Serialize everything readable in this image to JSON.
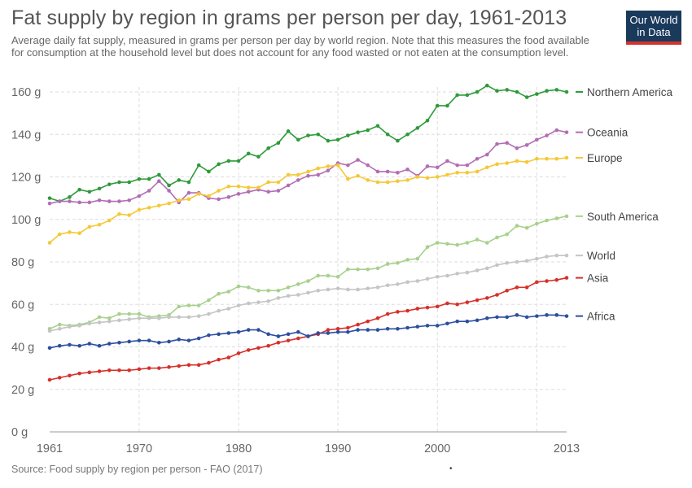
{
  "title": "Fat supply by region in grams per person per day, 1961-2013",
  "subtitle": "Average daily fat supply, measured in grams per person per day by world region. Note that this measures the food available for consumption at the household level but does not account for any food wasted or not eaten at the consumption level.",
  "logo": {
    "line1": "Our World",
    "line2": "in Data",
    "colors": {
      "background": "#1a3a5c",
      "underline": "#d0342c"
    }
  },
  "source": "Source: Food supply by region per person - FAO (2017)",
  "footer_mark": "•",
  "chart_data": {
    "type": "line",
    "title": "Fat supply by region in grams per person per day, 1961-2013",
    "xlim": [
      1961,
      2013
    ],
    "ylim": [
      0,
      160
    ],
    "x_ticks": [
      1961,
      1970,
      1980,
      1990,
      2000,
      2013
    ],
    "y_ticks": [
      0,
      20,
      40,
      60,
      80,
      100,
      120,
      140,
      160
    ],
    "y_tick_labels": [
      "0 g",
      "20 g",
      "40 g",
      "60 g",
      "80 g",
      "100 g",
      "120 g",
      "140 g",
      "160 g"
    ],
    "vertical_grid_years": [
      1970,
      1980,
      1990,
      2000,
      2010
    ],
    "grid": true,
    "legend": "right-end labels",
    "x": [
      1961,
      1962,
      1963,
      1964,
      1965,
      1966,
      1967,
      1968,
      1969,
      1970,
      1971,
      1972,
      1973,
      1974,
      1975,
      1976,
      1977,
      1978,
      1979,
      1980,
      1981,
      1982,
      1983,
      1984,
      1985,
      1986,
      1987,
      1988,
      1989,
      1990,
      1991,
      1992,
      1993,
      1994,
      1995,
      1996,
      1997,
      1998,
      1999,
      2000,
      2001,
      2002,
      2003,
      2004,
      2005,
      2006,
      2007,
      2008,
      2009,
      2010,
      2011,
      2012,
      2013
    ],
    "series": [
      {
        "name": "Northern America",
        "color": "#2e9a3a",
        "values": [
          110,
          108.5,
          110.5,
          114,
          113,
          114.5,
          116.5,
          117.5,
          117.5,
          119,
          119,
          121,
          116,
          118.5,
          117.5,
          125.5,
          122.5,
          126,
          127.5,
          127.5,
          131,
          129.5,
          133.5,
          136,
          141.5,
          137.5,
          139.5,
          140,
          137,
          137.5,
          139.5,
          141,
          142,
          144,
          140,
          137,
          140,
          143,
          146.5,
          153.5,
          153.5,
          158.5,
          158.5,
          160,
          163,
          160.5,
          161,
          160,
          157.5,
          159,
          160.5,
          161,
          160
        ]
      },
      {
        "name": "Oceania",
        "color": "#b36db5",
        "values": [
          107.5,
          108.5,
          108.5,
          108,
          108,
          109,
          108.5,
          108.5,
          109,
          111,
          113.5,
          118,
          113.5,
          108,
          112.5,
          112.5,
          110,
          109.5,
          110.5,
          112,
          113,
          114,
          113,
          113.5,
          116,
          118.5,
          120.5,
          121,
          123,
          126.5,
          125.5,
          128,
          125.5,
          122.5,
          122.5,
          122,
          123.5,
          120.5,
          125,
          124.5,
          127.5,
          125.5,
          125.5,
          128.5,
          130.5,
          135.5,
          136,
          133.5,
          135,
          137.5,
          139.5,
          142,
          141
        ]
      },
      {
        "name": "Europe",
        "color": "#f5c836",
        "values": [
          89,
          93,
          94,
          93.5,
          96.5,
          97.5,
          99.5,
          102.5,
          102,
          104.5,
          105.5,
          106.5,
          107.5,
          109,
          109.5,
          112,
          111,
          113.5,
          115.5,
          115.5,
          115,
          115,
          117.5,
          117.5,
          121,
          121,
          122.5,
          124,
          125,
          125.5,
          119,
          120.5,
          118.5,
          117.5,
          117.5,
          118,
          118.5,
          120,
          119.5,
          120,
          121,
          122,
          122,
          122.5,
          124.5,
          126,
          126.5,
          127.5,
          127,
          128.5,
          128.5,
          128.5,
          129
        ]
      },
      {
        "name": "South America",
        "color": "#a7d18c",
        "values": [
          48.5,
          50.5,
          50,
          50.5,
          51.5,
          54,
          53.5,
          55.5,
          55.5,
          55.5,
          54,
          54.5,
          55,
          59,
          59.5,
          59.5,
          62,
          65,
          66,
          68.5,
          68,
          66.5,
          66.5,
          66.5,
          68,
          69.5,
          71,
          73.5,
          73.5,
          73,
          76.5,
          76.5,
          76.5,
          77,
          79,
          79.5,
          81,
          81.5,
          87,
          89,
          88.5,
          88,
          89,
          90.5,
          89,
          91.5,
          93,
          97,
          96,
          98,
          99.5,
          100.5,
          101.5
        ]
      },
      {
        "name": "World",
        "color": "#c5c5c5",
        "values": [
          47.5,
          48.5,
          49.5,
          50,
          51,
          51.5,
          52,
          52.5,
          53,
          53.5,
          53.5,
          53.5,
          54,
          54,
          54,
          54.5,
          55.5,
          57,
          58,
          59.5,
          60.5,
          61,
          61.5,
          63,
          64,
          64.5,
          65.5,
          66.5,
          67,
          67.5,
          67,
          67,
          67.5,
          68,
          69,
          69.5,
          70.5,
          71,
          72,
          73,
          73.5,
          74.5,
          75,
          76,
          77,
          78.5,
          79.5,
          80,
          80.5,
          81.5,
          82.5,
          83,
          83
        ]
      },
      {
        "name": "Asia",
        "color": "#d6302a",
        "values": [
          24.5,
          25.5,
          26.5,
          27.5,
          28,
          28.5,
          29,
          29,
          29,
          29.5,
          30,
          30,
          30.5,
          31,
          31.5,
          31.5,
          32.5,
          34,
          35,
          37,
          38.5,
          39.5,
          40.5,
          42,
          43,
          44,
          45,
          46,
          48,
          48.5,
          49,
          50.5,
          52,
          53.5,
          55.5,
          56.5,
          57,
          58,
          58.5,
          59,
          60.5,
          60,
          61,
          62,
          63,
          64.5,
          66.5,
          68,
          68,
          70.5,
          71,
          71.5,
          72.5
        ]
      },
      {
        "name": "Africa",
        "color": "#2c4f9e",
        "values": [
          39.5,
          40.5,
          41,
          40.5,
          41.5,
          40.5,
          41.5,
          42,
          42.5,
          43,
          43,
          42,
          42.5,
          43.5,
          43,
          44,
          45.5,
          46,
          46.5,
          47,
          48,
          48,
          46,
          45,
          46,
          47,
          45,
          46.5,
          46.5,
          47,
          47,
          48,
          48,
          48,
          48.5,
          48.5,
          49,
          49.5,
          50,
          50,
          51,
          52,
          52,
          52.5,
          53.5,
          54,
          54,
          55,
          54,
          54.5,
          55,
          55,
          54.5
        ]
      }
    ]
  }
}
